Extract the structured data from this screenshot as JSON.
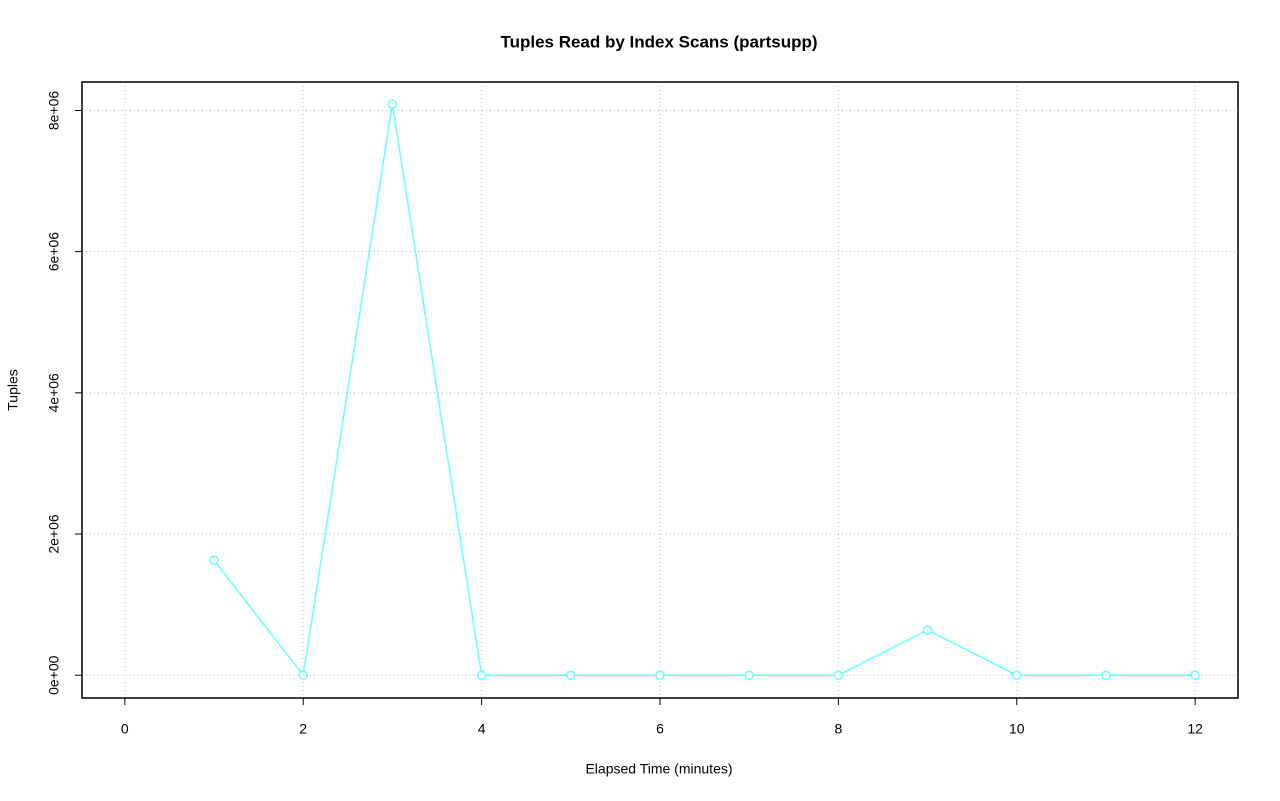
{
  "chart_data": {
    "type": "line",
    "title": "Tuples Read by Index Scans (partsupp)",
    "x_label": "Elapsed Time (minutes)",
    "y_label": "Tuples",
    "x": [
      1,
      2,
      3,
      4,
      5,
      6,
      7,
      8,
      9,
      10,
      11,
      12
    ],
    "series": [
      {
        "name": "partsupp",
        "color": "#66ffff",
        "values": [
          1630000,
          0,
          8090000,
          0,
          0,
          0,
          0,
          0,
          640000,
          0,
          0,
          0
        ]
      }
    ],
    "xlim": [
      -0.48,
      12.48
    ],
    "xticks": [
      0,
      2,
      4,
      6,
      8,
      10,
      12
    ],
    "ylim": [
      -323000,
      8403000
    ],
    "yticks": [
      {
        "value": 0,
        "label": "0e+00"
      },
      {
        "value": 2000000,
        "label": "2e+06"
      },
      {
        "value": 4000000,
        "label": "4e+06"
      },
      {
        "value": 6000000,
        "label": "6e+06"
      },
      {
        "value": 8000000,
        "label": "8e+06"
      }
    ],
    "grid": true
  }
}
